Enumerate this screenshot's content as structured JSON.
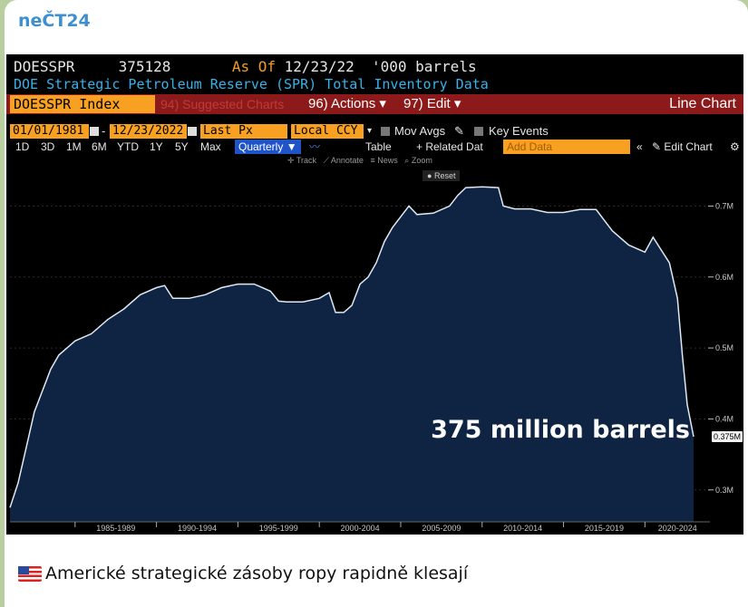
{
  "channel": {
    "name": "neČT24"
  },
  "terminal": {
    "ticker": "DOESSPR",
    "last_value": "375128",
    "as_of_label": "As Of",
    "as_of_date": "12/23/22",
    "units": "'000 barrels",
    "description": "DOE Strategic Petroleum Reserve (SPR) Total Inventory Data",
    "index_name": "DOESSPR Index",
    "suggested_charts": "94) Suggested Charts",
    "actions": "96) Actions",
    "edit": "97) Edit",
    "chart_type_label": "Line Chart",
    "start_date": "01/01/1981",
    "end_date": "12/23/2022",
    "field": "Last Px",
    "currency": "Local CCY",
    "mov_avgs": "Mov Avgs",
    "key_events": "Key Events",
    "periods": [
      "1D",
      "3D",
      "1M",
      "6M",
      "YTD",
      "1Y",
      "5Y",
      "Max"
    ],
    "frequency": "Quarterly",
    "table_label": "Table",
    "related_label": "+ Related Dat",
    "add_data_placeholder": "Add Data",
    "edit_chart_label": "Edit Chart",
    "tools": {
      "track": "Track",
      "annotate": "Annotate",
      "news": "News",
      "zoom": "Zoom",
      "reset": "Reset"
    },
    "overlay_text": "375 million barrels",
    "last_price_tag": "0.375M"
  },
  "chart_data": {
    "type": "area",
    "title": "DOE Strategic Petroleum Reserve (SPR) Total Inventory Data",
    "ylabel": "'000 barrels",
    "ylim": [
      0.255,
      0.735
    ],
    "xlim": [
      1981.0,
      2023.1
    ],
    "y_tick_values": [
      0.3,
      0.4,
      0.5,
      0.6,
      0.7
    ],
    "y_tick_labels": [
      "0.3M",
      "0.4M",
      "0.5M",
      "0.6M",
      "0.7M"
    ],
    "x_tick_labels": [
      "1985-1989",
      "1990-1994",
      "1995-1999",
      "2000-2004",
      "2005-2009",
      "2010-2014",
      "2015-2019",
      "2020-2024"
    ],
    "x_tick_centers": [
      1987.5,
      1992.5,
      1997.5,
      2002.5,
      2007.5,
      2012.5,
      2017.5,
      2022.0
    ],
    "x_dividers": [
      1985,
      1990,
      1995,
      2000,
      2005,
      2010,
      2015,
      2020
    ],
    "series": [
      {
        "values": [
          [
            1981.0,
            0.275
          ],
          [
            1981.5,
            0.31
          ],
          [
            1982.0,
            0.36
          ],
          [
            1982.5,
            0.41
          ],
          [
            1983.0,
            0.44
          ],
          [
            1983.5,
            0.47
          ],
          [
            1984.0,
            0.49
          ],
          [
            1984.5,
            0.5
          ],
          [
            1985.0,
            0.51
          ],
          [
            1986.0,
            0.52
          ],
          [
            1987.0,
            0.54
          ],
          [
            1988.0,
            0.555
          ],
          [
            1989.0,
            0.575
          ],
          [
            1990.0,
            0.585
          ],
          [
            1990.5,
            0.588
          ],
          [
            1991.0,
            0.57
          ],
          [
            1992.0,
            0.57
          ],
          [
            1993.0,
            0.575
          ],
          [
            1994.0,
            0.585
          ],
          [
            1995.0,
            0.59
          ],
          [
            1996.0,
            0.59
          ],
          [
            1997.0,
            0.58
          ],
          [
            1997.5,
            0.566
          ],
          [
            1998.0,
            0.565
          ],
          [
            1999.0,
            0.565
          ],
          [
            2000.0,
            0.57
          ],
          [
            2000.6,
            0.578
          ],
          [
            2001.0,
            0.55
          ],
          [
            2001.5,
            0.55
          ],
          [
            2002.0,
            0.56
          ],
          [
            2002.5,
            0.59
          ],
          [
            2003.0,
            0.6
          ],
          [
            2003.5,
            0.62
          ],
          [
            2004.0,
            0.65
          ],
          [
            2004.5,
            0.67
          ],
          [
            2005.0,
            0.685
          ],
          [
            2005.5,
            0.7
          ],
          [
            2006.0,
            0.688
          ],
          [
            2007.0,
            0.69
          ],
          [
            2008.0,
            0.7
          ],
          [
            2008.5,
            0.715
          ],
          [
            2009.0,
            0.726
          ],
          [
            2010.0,
            0.727
          ],
          [
            2011.0,
            0.726
          ],
          [
            2011.3,
            0.7
          ],
          [
            2012.0,
            0.696
          ],
          [
            2013.0,
            0.696
          ],
          [
            2014.0,
            0.691
          ],
          [
            2015.0,
            0.691
          ],
          [
            2016.0,
            0.695
          ],
          [
            2017.0,
            0.695
          ],
          [
            2017.5,
            0.68
          ],
          [
            2018.0,
            0.665
          ],
          [
            2019.0,
            0.645
          ],
          [
            2020.0,
            0.635
          ],
          [
            2020.5,
            0.656
          ],
          [
            2021.0,
            0.638
          ],
          [
            2021.5,
            0.62
          ],
          [
            2022.0,
            0.57
          ],
          [
            2022.3,
            0.49
          ],
          [
            2022.6,
            0.42
          ],
          [
            2022.99,
            0.375
          ]
        ]
      }
    ]
  },
  "caption": {
    "text": "Americké strategické zásoby ropy rapidně klesají"
  },
  "colors": {
    "area_fill": "#0f2442",
    "line": "#dfe8f3",
    "accent_orange": "#f7a021",
    "header_red": "#8d1a1a",
    "description_blue": "#38b2ea"
  }
}
